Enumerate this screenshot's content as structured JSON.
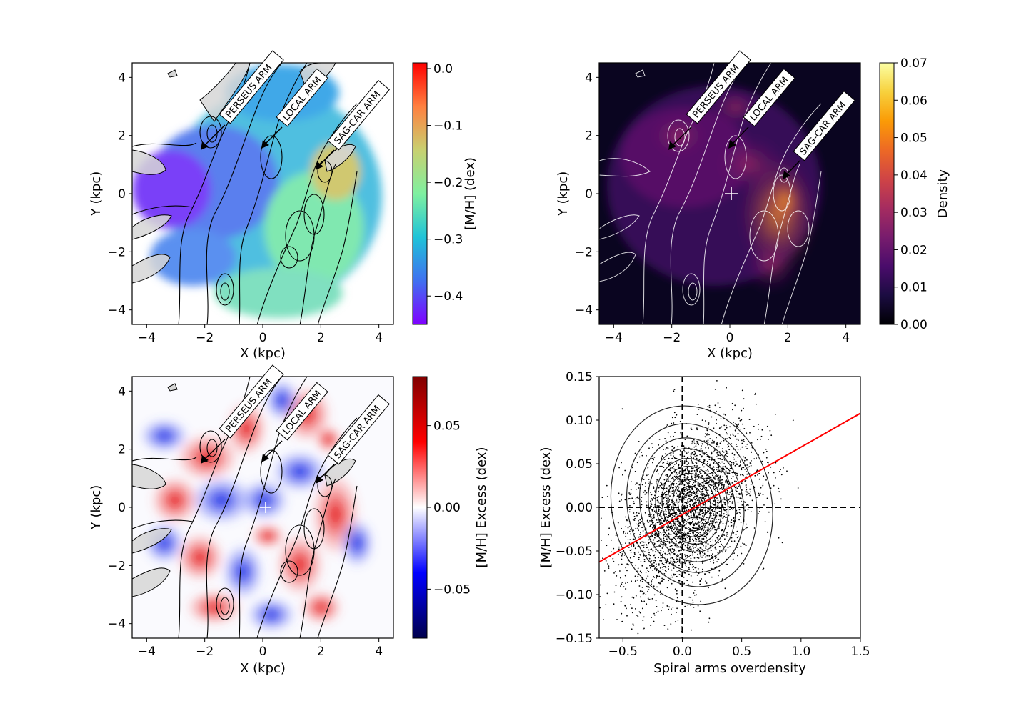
{
  "chart_data": [
    {
      "type": "heatmap",
      "xlabel": "X (kpc)",
      "ylabel": "Y (kpc)",
      "xlim": [
        -4.5,
        4.5
      ],
      "ylim": [
        -4.5,
        4.5
      ],
      "xticks": [
        -4,
        -2,
        0,
        2,
        4
      ],
      "yticks": [
        -4,
        -2,
        0,
        2,
        4
      ],
      "colorbar": {
        "label": "[M/H] (dex)",
        "range": [
          -0.45,
          0.01
        ],
        "ticks": [
          0.0,
          -0.1,
          -0.2,
          -0.3,
          -0.4
        ],
        "tick_labels": [
          "0.0",
          "−0.1",
          "−0.2",
          "−0.3",
          "−0.4"
        ],
        "colors": [
          "#7f00ff",
          "#3f70f0",
          "#1fc3d8",
          "#7ff0a0",
          "#c8d070",
          "#ff8040",
          "#ff0000"
        ]
      },
      "annotations": [
        "PERSEUS ARM",
        "LOCAL ARM",
        "SAG-CAR ARM"
      ]
    },
    {
      "type": "heatmap",
      "xlabel": "X (kpc)",
      "ylabel": "Y (kpc)",
      "xlim": [
        -4.5,
        4.5
      ],
      "ylim": [
        -4.5,
        4.5
      ],
      "xticks": [
        -4,
        -2,
        0,
        2,
        4
      ],
      "yticks": [
        -4,
        -2,
        0,
        2,
        4
      ],
      "sun_marker": [
        0,
        0
      ],
      "colorbar": {
        "label": "Density",
        "range": [
          0.0,
          0.07
        ],
        "ticks": [
          0.0,
          0.01,
          0.02,
          0.03,
          0.04,
          0.05,
          0.06,
          0.07
        ],
        "tick_labels": [
          "0.00",
          "0.01",
          "0.02",
          "0.03",
          "0.04",
          "0.05",
          "0.06",
          "0.07"
        ],
        "colors": [
          "#000004",
          "#1b0c41",
          "#4a0c6b",
          "#781c6d",
          "#a52c60",
          "#cf4446",
          "#ed6925",
          "#fb9b06",
          "#f7d13d",
          "#fcffa4"
        ]
      },
      "annotations": [
        "PERSEUS ARM",
        "LOCAL ARM",
        "SAG-CAR ARM"
      ]
    },
    {
      "type": "heatmap",
      "xlabel": "X (kpc)",
      "ylabel": "Y (kpc)",
      "xlim": [
        -4.5,
        4.5
      ],
      "ylim": [
        -4.5,
        4.5
      ],
      "xticks": [
        -4,
        -2,
        0,
        2,
        4
      ],
      "yticks": [
        -4,
        -2,
        0,
        2,
        4
      ],
      "sun_marker": [
        0,
        0
      ],
      "colorbar": {
        "label": "[M/H] Excess (dex)",
        "range": [
          -0.08,
          0.08
        ],
        "ticks": [
          0.05,
          0.0,
          -0.05
        ],
        "tick_labels": [
          "0.05",
          "0.00",
          "−0.05"
        ],
        "colors": [
          "#00004c",
          "#0000ff",
          "#ffffff",
          "#ff0000",
          "#800000"
        ]
      },
      "annotations": [
        "PERSEUS ARM",
        "LOCAL ARM",
        "SAG-CAR ARM"
      ]
    },
    {
      "type": "scatter",
      "xlabel": "Spiral arms overdensity",
      "ylabel": "[M/H] Excess (dex)",
      "xlim": [
        -0.7,
        1.5
      ],
      "ylim": [
        -0.15,
        0.15
      ],
      "xticks": [
        -0.5,
        0.0,
        0.5,
        1.0,
        1.5
      ],
      "xtick_labels": [
        "−0.5",
        "0.0",
        "0.5",
        "1.0",
        "1.5"
      ],
      "yticks": [
        0.15,
        0.1,
        0.05,
        0.0,
        -0.05,
        -0.1,
        -0.15
      ],
      "ytick_labels": [
        "0.15",
        "0.10",
        "0.05",
        "0.00",
        "−0.05",
        "−0.10",
        "−0.15"
      ],
      "fit_line": {
        "slope": 0.0775,
        "intercept": -0.0084,
        "color": "#ff0000"
      },
      "reference_lines": {
        "x": 0.0,
        "y": 0.0,
        "style": "dashed"
      },
      "scatter_center": [
        0.05,
        0.0
      ],
      "n_points_approx": 3000
    }
  ]
}
